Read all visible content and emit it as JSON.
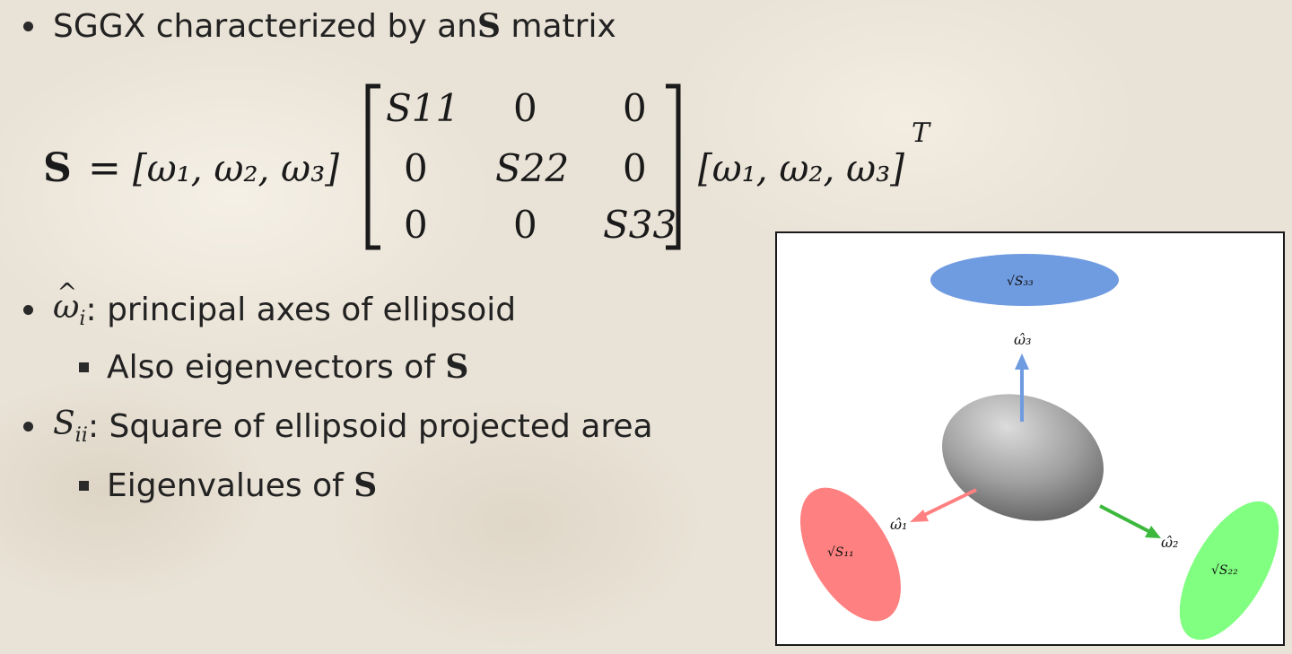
{
  "bullets": {
    "b1_prefix": "SGGX characterized by an ",
    "b1_symbol": "S",
    "b1_suffix": " matrix",
    "b2_symbol": "ω",
    "b2_sub": "i",
    "b2_text": ": principal axes of ellipsoid",
    "b2a_prefix": "Also eigenvectors of ",
    "b2a_symbol": "S",
    "b3_symbol": "S",
    "b3_sub": "ii",
    "b3_text": ": Square of ellipsoid projected area",
    "b3a_prefix": "Eigenvalues of ",
    "b3a_symbol": "S"
  },
  "equation": {
    "lhs": "S",
    "equals": "=",
    "vec_left": "[ω₁, ω₂, ω₃]",
    "matrix": [
      [
        "S11",
        "0",
        "0"
      ],
      [
        "0",
        "S22",
        "0"
      ],
      [
        "0",
        "0",
        "S33"
      ]
    ],
    "vec_right": "[ω₁, ω₂, ω₃]",
    "superscript": "T"
  },
  "figure": {
    "label_w1": "ω̂₁",
    "label_w2": "ω̂₂",
    "label_w3": "ω̂₃",
    "label_s11": "√S₁₁",
    "label_s22": "√S₂₂",
    "label_s33": "√S₃₃",
    "colors": {
      "red": "#ff8080",
      "green": "#80ff80",
      "blue": "#6f9be0",
      "ellipsoid": "#9a9a9a"
    }
  }
}
